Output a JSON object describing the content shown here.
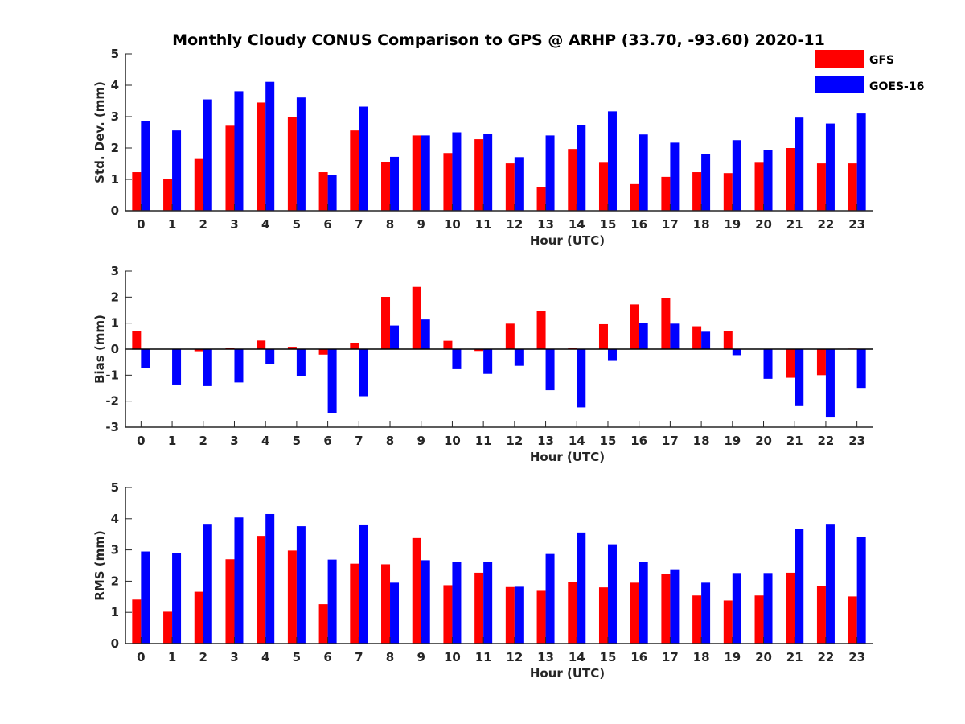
{
  "title": "Monthly Cloudy CONUS Comparison to GPS @ ARHP (33.70, -93.60) 2020-11",
  "legend": {
    "placement": "top-right",
    "items": [
      {
        "label": "GFS",
        "color": "#ff0000"
      },
      {
        "label": "GOES-16",
        "color": "#0000ff"
      }
    ]
  },
  "chart_data": [
    {
      "type": "bar",
      "xlabel": "Hour (UTC)",
      "ylabel": "Std. Dev. (mm)",
      "ylim": [
        0,
        5
      ],
      "yticks": [
        0,
        1,
        2,
        3,
        4,
        5
      ],
      "categories": [
        "0",
        "1",
        "2",
        "3",
        "4",
        "5",
        "6",
        "7",
        "8",
        "9",
        "10",
        "11",
        "12",
        "13",
        "14",
        "15",
        "16",
        "17",
        "18",
        "19",
        "20",
        "21",
        "22",
        "23"
      ],
      "series": [
        {
          "name": "GFS",
          "color": "#ff0000",
          "values": [
            1.23,
            1.02,
            1.65,
            2.71,
            3.45,
            2.98,
            1.23,
            2.56,
            1.56,
            2.4,
            1.84,
            2.28,
            1.51,
            0.76,
            1.97,
            1.53,
            0.85,
            1.08,
            1.23,
            1.2,
            1.53,
            2.0,
            1.51,
            1.51
          ]
        },
        {
          "name": "GOES-16",
          "color": "#0000ff",
          "values": [
            2.86,
            2.56,
            3.55,
            3.81,
            4.11,
            3.61,
            1.15,
            3.32,
            1.72,
            2.4,
            2.5,
            2.46,
            1.71,
            2.4,
            2.74,
            3.17,
            2.43,
            2.17,
            1.81,
            2.25,
            1.94,
            2.97,
            2.78,
            3.1
          ]
        }
      ]
    },
    {
      "type": "bar",
      "xlabel": "Hour (UTC)",
      "ylabel": "Bias (mm)",
      "ylim": [
        -3,
        3
      ],
      "yticks": [
        -3,
        -2,
        -1,
        0,
        1,
        2,
        3
      ],
      "categories": [
        "0",
        "1",
        "2",
        "3",
        "4",
        "5",
        "6",
        "7",
        "8",
        "9",
        "10",
        "11",
        "12",
        "13",
        "14",
        "15",
        "16",
        "17",
        "18",
        "19",
        "20",
        "21",
        "22",
        "23"
      ],
      "series": [
        {
          "name": "GFS",
          "color": "#ff0000",
          "values": [
            0.7,
            0.0,
            -0.08,
            0.05,
            0.33,
            0.09,
            -0.21,
            0.24,
            2.01,
            2.39,
            0.32,
            -0.07,
            0.98,
            1.48,
            0.03,
            0.96,
            1.72,
            1.95,
            0.88,
            0.68,
            0.0,
            -1.1,
            -1.0,
            0.02
          ]
        },
        {
          "name": "GOES-16",
          "color": "#0000ff",
          "values": [
            -0.73,
            -1.36,
            -1.42,
            -1.28,
            -0.58,
            -1.05,
            -2.45,
            -1.81,
            0.91,
            1.14,
            -0.77,
            -0.95,
            -0.64,
            -1.58,
            -2.24,
            -0.45,
            1.02,
            0.98,
            0.67,
            -0.23,
            -1.14,
            -2.19,
            -2.6,
            -1.49
          ]
        }
      ]
    },
    {
      "type": "bar",
      "xlabel": "Hour (UTC)",
      "ylabel": "RMS (mm)",
      "ylim": [
        0,
        5
      ],
      "yticks": [
        0,
        1,
        2,
        3,
        4,
        5
      ],
      "categories": [
        "0",
        "1",
        "2",
        "3",
        "4",
        "5",
        "6",
        "7",
        "8",
        "9",
        "10",
        "11",
        "12",
        "13",
        "14",
        "15",
        "16",
        "17",
        "18",
        "19",
        "20",
        "21",
        "22",
        "23"
      ],
      "series": [
        {
          "name": "GFS",
          "color": "#ff0000",
          "values": [
            1.41,
            1.02,
            1.66,
            2.7,
            3.45,
            2.98,
            1.26,
            2.56,
            2.54,
            3.38,
            1.87,
            2.27,
            1.81,
            1.69,
            1.98,
            1.8,
            1.95,
            2.23,
            1.54,
            1.38,
            1.54,
            2.27,
            1.83,
            1.51
          ]
        },
        {
          "name": "GOES-16",
          "color": "#0000ff",
          "values": [
            2.95,
            2.9,
            3.81,
            4.04,
            4.15,
            3.76,
            2.69,
            3.79,
            1.95,
            2.67,
            2.61,
            2.62,
            1.82,
            2.87,
            3.56,
            3.18,
            2.62,
            2.38,
            1.95,
            2.26,
            2.26,
            3.68,
            3.81,
            3.42
          ]
        }
      ]
    }
  ]
}
